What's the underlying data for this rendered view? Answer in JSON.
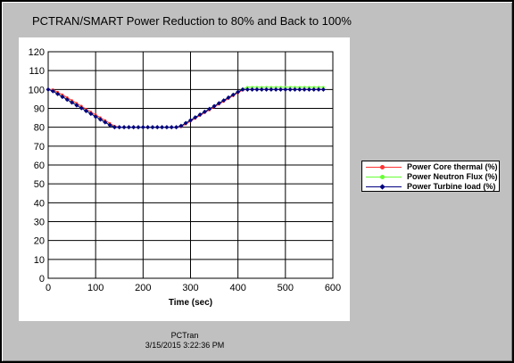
{
  "chart_data": {
    "type": "line",
    "title": "PCTRAN/SMART Power Reduction to 80% and Back to 100%",
    "xlabel": "Time (sec)",
    "ylabel": "",
    "xlim": [
      0,
      600
    ],
    "ylim": [
      0,
      120
    ],
    "xticks": [
      0,
      100,
      200,
      300,
      400,
      500,
      600
    ],
    "yticks": [
      0,
      10,
      20,
      30,
      40,
      50,
      60,
      70,
      80,
      90,
      100,
      110,
      120
    ],
    "grid": true,
    "legend_position": "right",
    "series": [
      {
        "name": "Power Core thermal (%)",
        "color": "#ff3333",
        "marker": "dot",
        "x": [
          0,
          10,
          20,
          30,
          40,
          50,
          60,
          70,
          80,
          90,
          100,
          110,
          120,
          130,
          140,
          150,
          160,
          170,
          180,
          190,
          200,
          210,
          220,
          230,
          240,
          250,
          260,
          270,
          280,
          290,
          300,
          310,
          320,
          330,
          340,
          350,
          360,
          370,
          380,
          390,
          400,
          410,
          420,
          430,
          440,
          450,
          460,
          470,
          480,
          490,
          500,
          510,
          520,
          530,
          540,
          550,
          560,
          570,
          580
        ],
        "y": [
          100,
          99.9,
          98.6,
          97.2,
          95.7,
          94.2,
          92.7,
          91.2,
          89.6,
          88.1,
          86.6,
          85.1,
          83.6,
          82.1,
          80.6,
          80.1,
          80,
          80,
          80,
          80,
          80,
          80,
          80,
          80,
          80,
          80,
          80,
          80,
          80.2,
          81.7,
          83.2,
          84.7,
          86.2,
          87.7,
          89.2,
          90.7,
          92.2,
          93.7,
          95.2,
          96.7,
          98.2,
          99.7,
          100,
          100,
          100,
          100,
          100,
          100,
          100,
          100,
          100,
          100,
          100,
          100,
          100,
          100,
          100,
          100,
          100
        ]
      },
      {
        "name": "Power Neutron Flux (%)",
        "color": "#66ff33",
        "marker": "dot",
        "x": [
          0,
          10,
          20,
          30,
          40,
          50,
          60,
          70,
          80,
          90,
          100,
          110,
          120,
          130,
          140,
          150,
          160,
          170,
          180,
          190,
          200,
          210,
          220,
          230,
          240,
          250,
          260,
          270,
          280,
          290,
          300,
          310,
          320,
          330,
          340,
          350,
          360,
          370,
          380,
          390,
          400,
          410,
          420,
          430,
          440,
          450,
          460,
          470,
          480,
          490,
          500,
          510,
          520,
          530,
          540,
          550,
          560,
          570,
          580
        ],
        "y": [
          100,
          99.3,
          97.8,
          96.3,
          94.8,
          93.3,
          91.8,
          90.3,
          88.8,
          87.3,
          85.8,
          84.3,
          82.8,
          81.3,
          80.2,
          80,
          80,
          80,
          80,
          80,
          80,
          80,
          80,
          80,
          80,
          80,
          80,
          80,
          80.8,
          82.3,
          83.8,
          85.3,
          86.8,
          88.3,
          89.8,
          91.3,
          92.8,
          94.3,
          95.8,
          97.3,
          98.8,
          100.3,
          101.2,
          101.2,
          101.2,
          101.2,
          101.2,
          101.2,
          101.2,
          101.2,
          101.2,
          101.2,
          101.2,
          101.2,
          101.2,
          101.2,
          101.2,
          101.2,
          101.2
        ]
      },
      {
        "name": "Power Turbine load (%)",
        "color": "#000080",
        "marker": "diamond",
        "x": [
          0,
          10,
          20,
          30,
          40,
          50,
          60,
          70,
          80,
          90,
          100,
          110,
          120,
          130,
          140,
          150,
          160,
          170,
          180,
          190,
          200,
          210,
          220,
          230,
          240,
          250,
          260,
          270,
          280,
          290,
          300,
          310,
          320,
          330,
          340,
          350,
          360,
          370,
          380,
          390,
          400,
          410,
          420,
          430,
          440,
          450,
          460,
          470,
          480,
          490,
          500,
          510,
          520,
          530,
          540,
          550,
          560,
          570,
          580
        ],
        "y": [
          100,
          99.1,
          97.6,
          96.1,
          94.6,
          93.1,
          91.6,
          90.1,
          88.6,
          87.1,
          85.6,
          84.1,
          82.6,
          81.1,
          80,
          80,
          80,
          80,
          80,
          80,
          80,
          80,
          80,
          80,
          80,
          80,
          80,
          80,
          80.7,
          82.2,
          83.7,
          85.2,
          86.7,
          88.2,
          89.7,
          91.2,
          92.7,
          94.2,
          95.7,
          97.2,
          98.7,
          100,
          100,
          100,
          100,
          100,
          100,
          100,
          100,
          100,
          100,
          100,
          100,
          100,
          100,
          100,
          100,
          100,
          100
        ]
      }
    ]
  },
  "footer": {
    "source": "PCTran",
    "timestamp": "3/15/2015 3:22:36 PM"
  }
}
